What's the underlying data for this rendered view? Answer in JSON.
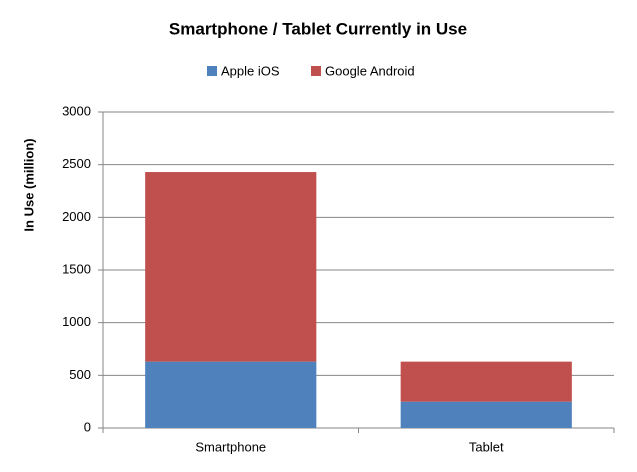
{
  "chart_data": {
    "type": "stacked_bar",
    "title": "Smartphone / Tablet Currently in Use",
    "y_label": "In Use (million)",
    "categories": [
      "Smartphone",
      "Tablet"
    ],
    "series": [
      {
        "name": "Apple iOS",
        "color": "#4f81bd",
        "values": [
          630,
          250
        ]
      },
      {
        "name": "Google Android",
        "color": "#c0504d",
        "values": [
          1800,
          380
        ]
      }
    ],
    "ylim": [
      0,
      3000
    ],
    "yticks": [
      0,
      500,
      1000,
      1500,
      2000,
      2500,
      3000
    ],
    "grid": true,
    "legend": "top"
  }
}
